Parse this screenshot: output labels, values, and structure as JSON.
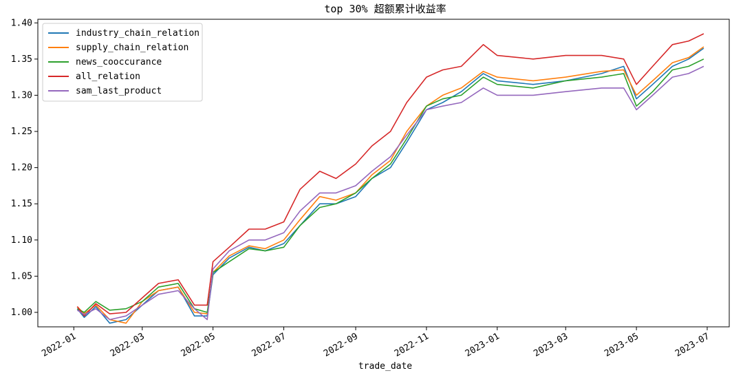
{
  "chart_data": {
    "type": "line",
    "title": "top 30% 超额累计收益率",
    "xlabel": "trade_date",
    "ylabel": "",
    "xlim": [
      "2021-12-01",
      "2023-07-20"
    ],
    "ylim": [
      0.98,
      1.405
    ],
    "x_ticks": [
      "2022-01",
      "2022-03",
      "2022-05",
      "2022-07",
      "2022-09",
      "2022-11",
      "2023-01",
      "2023-03",
      "2023-05",
      "2023-07"
    ],
    "y_ticks": [
      1.0,
      1.05,
      1.1,
      1.15,
      1.2,
      1.25,
      1.3,
      1.35,
      1.4
    ],
    "grid": false,
    "legend_position": "top-left",
    "series": [
      {
        "name": "industry_chain_relation",
        "color": "#1f77b4",
        "points": [
          [
            "2022-01-04",
            1.005
          ],
          [
            "2022-01-10",
            0.993
          ],
          [
            "2022-01-20",
            1.008
          ],
          [
            "2022-02-01",
            0.985
          ],
          [
            "2022-02-15",
            0.99
          ],
          [
            "2022-03-01",
            1.01
          ],
          [
            "2022-03-15",
            1.03
          ],
          [
            "2022-04-01",
            1.035
          ],
          [
            "2022-04-15",
            0.995
          ],
          [
            "2022-04-26",
            0.995
          ],
          [
            "2022-05-01",
            1.052
          ],
          [
            "2022-05-15",
            1.075
          ],
          [
            "2022-06-01",
            1.09
          ],
          [
            "2022-06-15",
            1.085
          ],
          [
            "2022-07-01",
            1.095
          ],
          [
            "2022-07-15",
            1.12
          ],
          [
            "2022-08-01",
            1.15
          ],
          [
            "2022-08-15",
            1.15
          ],
          [
            "2022-09-01",
            1.16
          ],
          [
            "2022-09-15",
            1.185
          ],
          [
            "2022-10-01",
            1.2
          ],
          [
            "2022-10-15",
            1.235
          ],
          [
            "2022-11-01",
            1.28
          ],
          [
            "2022-11-15",
            1.29
          ],
          [
            "2022-12-01",
            1.305
          ],
          [
            "2022-12-20",
            1.33
          ],
          [
            "2023-01-01",
            1.32
          ],
          [
            "2023-02-01",
            1.315
          ],
          [
            "2023-03-01",
            1.32
          ],
          [
            "2023-04-01",
            1.33
          ],
          [
            "2023-04-20",
            1.34
          ],
          [
            "2023-05-01",
            1.295
          ],
          [
            "2023-05-15",
            1.315
          ],
          [
            "2023-06-01",
            1.34
          ],
          [
            "2023-06-15",
            1.35
          ],
          [
            "2023-06-28",
            1.365
          ]
        ]
      },
      {
        "name": "supply_chain_relation",
        "color": "#ff7f0e",
        "points": [
          [
            "2022-01-04",
            1.008
          ],
          [
            "2022-01-10",
            0.998
          ],
          [
            "2022-01-20",
            1.01
          ],
          [
            "2022-02-01",
            0.99
          ],
          [
            "2022-02-15",
            0.985
          ],
          [
            "2022-03-01",
            1.015
          ],
          [
            "2022-03-15",
            1.03
          ],
          [
            "2022-04-01",
            1.035
          ],
          [
            "2022-04-15",
            1.0
          ],
          [
            "2022-04-26",
            0.998
          ],
          [
            "2022-05-01",
            1.055
          ],
          [
            "2022-05-15",
            1.078
          ],
          [
            "2022-06-01",
            1.092
          ],
          [
            "2022-06-15",
            1.088
          ],
          [
            "2022-07-01",
            1.1
          ],
          [
            "2022-07-15",
            1.128
          ],
          [
            "2022-08-01",
            1.16
          ],
          [
            "2022-08-15",
            1.155
          ],
          [
            "2022-09-01",
            1.165
          ],
          [
            "2022-09-15",
            1.19
          ],
          [
            "2022-10-01",
            1.21
          ],
          [
            "2022-10-15",
            1.25
          ],
          [
            "2022-11-01",
            1.285
          ],
          [
            "2022-11-15",
            1.3
          ],
          [
            "2022-12-01",
            1.31
          ],
          [
            "2022-12-20",
            1.333
          ],
          [
            "2023-01-01",
            1.325
          ],
          [
            "2023-02-01",
            1.32
          ],
          [
            "2023-03-01",
            1.325
          ],
          [
            "2023-04-01",
            1.333
          ],
          [
            "2023-04-20",
            1.335
          ],
          [
            "2023-05-01",
            1.3
          ],
          [
            "2023-05-15",
            1.32
          ],
          [
            "2023-06-01",
            1.345
          ],
          [
            "2023-06-15",
            1.352
          ],
          [
            "2023-06-28",
            1.367
          ]
        ]
      },
      {
        "name": "news_cooccurance",
        "color": "#2ca02c",
        "points": [
          [
            "2022-01-04",
            1.005
          ],
          [
            "2022-01-10",
            1.0
          ],
          [
            "2022-01-20",
            1.015
          ],
          [
            "2022-02-01",
            1.003
          ],
          [
            "2022-02-15",
            1.005
          ],
          [
            "2022-03-01",
            1.015
          ],
          [
            "2022-03-15",
            1.035
          ],
          [
            "2022-04-01",
            1.04
          ],
          [
            "2022-04-15",
            1.005
          ],
          [
            "2022-04-26",
            1.0
          ],
          [
            "2022-05-01",
            1.055
          ],
          [
            "2022-05-15",
            1.07
          ],
          [
            "2022-06-01",
            1.088
          ],
          [
            "2022-06-15",
            1.085
          ],
          [
            "2022-07-01",
            1.09
          ],
          [
            "2022-07-15",
            1.12
          ],
          [
            "2022-08-01",
            1.145
          ],
          [
            "2022-08-15",
            1.15
          ],
          [
            "2022-09-01",
            1.165
          ],
          [
            "2022-09-15",
            1.185
          ],
          [
            "2022-10-01",
            1.205
          ],
          [
            "2022-10-15",
            1.24
          ],
          [
            "2022-11-01",
            1.285
          ],
          [
            "2022-11-15",
            1.295
          ],
          [
            "2022-12-01",
            1.3
          ],
          [
            "2022-12-20",
            1.325
          ],
          [
            "2023-01-01",
            1.315
          ],
          [
            "2023-02-01",
            1.31
          ],
          [
            "2023-03-01",
            1.32
          ],
          [
            "2023-04-01",
            1.325
          ],
          [
            "2023-04-20",
            1.33
          ],
          [
            "2023-05-01",
            1.285
          ],
          [
            "2023-05-15",
            1.305
          ],
          [
            "2023-06-01",
            1.335
          ],
          [
            "2023-06-15",
            1.34
          ],
          [
            "2023-06-28",
            1.35
          ]
        ]
      },
      {
        "name": "all_relation",
        "color": "#d62728",
        "points": [
          [
            "2022-01-04",
            1.008
          ],
          [
            "2022-01-10",
            0.995
          ],
          [
            "2022-01-20",
            1.012
          ],
          [
            "2022-02-01",
            0.998
          ],
          [
            "2022-02-15",
            1.0
          ],
          [
            "2022-03-01",
            1.02
          ],
          [
            "2022-03-15",
            1.04
          ],
          [
            "2022-04-01",
            1.045
          ],
          [
            "2022-04-15",
            1.01
          ],
          [
            "2022-04-26",
            1.01
          ],
          [
            "2022-05-01",
            1.07
          ],
          [
            "2022-05-15",
            1.09
          ],
          [
            "2022-06-01",
            1.115
          ],
          [
            "2022-06-15",
            1.115
          ],
          [
            "2022-07-01",
            1.125
          ],
          [
            "2022-07-15",
            1.17
          ],
          [
            "2022-08-01",
            1.195
          ],
          [
            "2022-08-15",
            1.185
          ],
          [
            "2022-09-01",
            1.205
          ],
          [
            "2022-09-15",
            1.23
          ],
          [
            "2022-10-01",
            1.25
          ],
          [
            "2022-10-15",
            1.29
          ],
          [
            "2022-11-01",
            1.325
          ],
          [
            "2022-11-15",
            1.335
          ],
          [
            "2022-12-01",
            1.34
          ],
          [
            "2022-12-20",
            1.37
          ],
          [
            "2023-01-01",
            1.355
          ],
          [
            "2023-02-01",
            1.35
          ],
          [
            "2023-03-01",
            1.355
          ],
          [
            "2023-04-01",
            1.355
          ],
          [
            "2023-04-20",
            1.35
          ],
          [
            "2023-05-01",
            1.315
          ],
          [
            "2023-05-15",
            1.34
          ],
          [
            "2023-06-01",
            1.37
          ],
          [
            "2023-06-15",
            1.375
          ],
          [
            "2023-06-28",
            1.385
          ]
        ]
      },
      {
        "name": "sam_last_product",
        "color": "#9467bd",
        "points": [
          [
            "2022-01-04",
            1.003
          ],
          [
            "2022-01-10",
            0.997
          ],
          [
            "2022-01-20",
            1.005
          ],
          [
            "2022-02-01",
            0.99
          ],
          [
            "2022-02-15",
            0.995
          ],
          [
            "2022-03-01",
            1.01
          ],
          [
            "2022-03-15",
            1.025
          ],
          [
            "2022-04-01",
            1.03
          ],
          [
            "2022-04-15",
            1.005
          ],
          [
            "2022-04-26",
            0.99
          ],
          [
            "2022-05-01",
            1.06
          ],
          [
            "2022-05-15",
            1.085
          ],
          [
            "2022-06-01",
            1.1
          ],
          [
            "2022-06-15",
            1.1
          ],
          [
            "2022-07-01",
            1.11
          ],
          [
            "2022-07-15",
            1.14
          ],
          [
            "2022-08-01",
            1.165
          ],
          [
            "2022-08-15",
            1.165
          ],
          [
            "2022-09-01",
            1.175
          ],
          [
            "2022-09-15",
            1.195
          ],
          [
            "2022-10-01",
            1.215
          ],
          [
            "2022-10-15",
            1.245
          ],
          [
            "2022-11-01",
            1.28
          ],
          [
            "2022-11-15",
            1.285
          ],
          [
            "2022-12-01",
            1.29
          ],
          [
            "2022-12-20",
            1.31
          ],
          [
            "2023-01-01",
            1.3
          ],
          [
            "2023-02-01",
            1.3
          ],
          [
            "2023-03-01",
            1.305
          ],
          [
            "2023-04-01",
            1.31
          ],
          [
            "2023-04-20",
            1.31
          ],
          [
            "2023-05-01",
            1.28
          ],
          [
            "2023-05-15",
            1.3
          ],
          [
            "2023-06-01",
            1.325
          ],
          [
            "2023-06-15",
            1.33
          ],
          [
            "2023-06-28",
            1.34
          ]
        ]
      }
    ]
  }
}
